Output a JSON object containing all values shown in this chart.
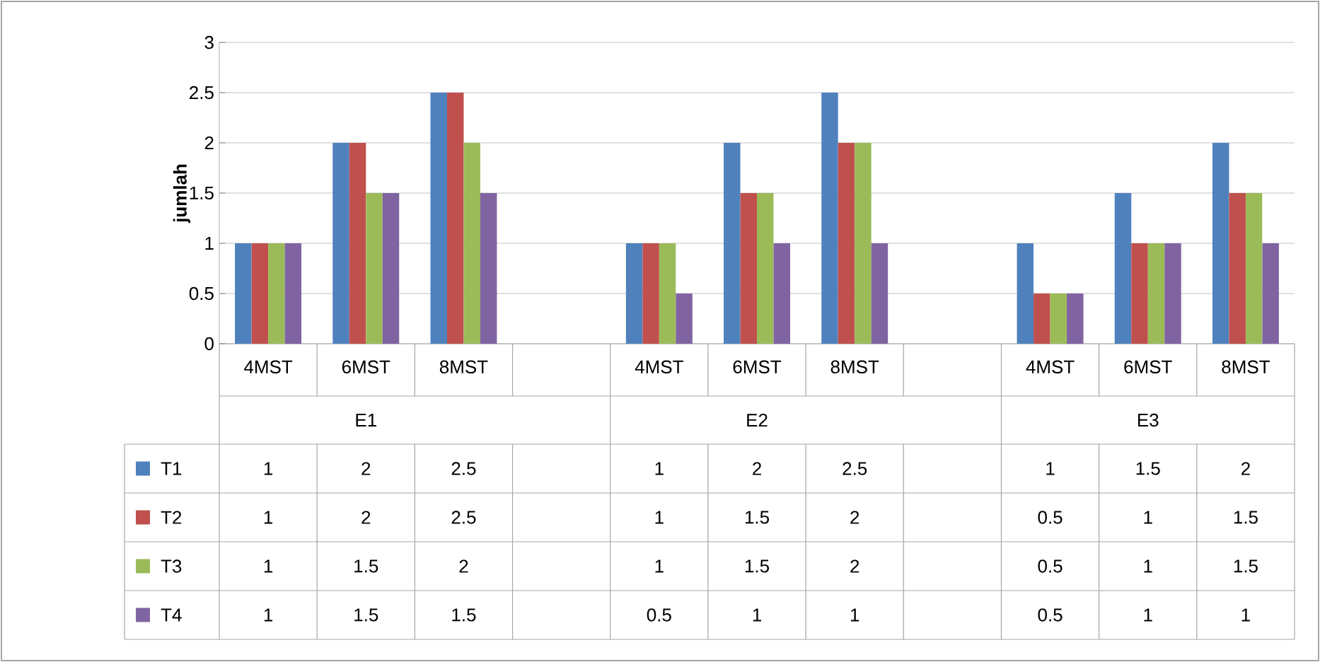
{
  "chart_data": {
    "type": "bar",
    "ylabel": "jumlah",
    "categories": [
      "4MST",
      "6MST",
      "8MST",
      null,
      "4MST",
      "6MST",
      "8MST",
      null,
      "4MST",
      "6MST",
      "8MST"
    ],
    "annotations": [
      "E1",
      "E2",
      "E3"
    ],
    "series": [
      {
        "name": "T1",
        "color": "#4f81bd",
        "values": [
          1,
          2,
          2.5,
          null,
          1,
          2,
          2.5,
          null,
          1,
          1.5,
          2
        ]
      },
      {
        "name": "T2",
        "color": "#c0504d",
        "values": [
          1,
          2,
          2.5,
          null,
          1,
          1.5,
          2,
          null,
          0.5,
          1,
          1.5
        ]
      },
      {
        "name": "T3",
        "color": "#9bbb59",
        "values": [
          1,
          1.5,
          2,
          null,
          1,
          1.5,
          2,
          null,
          0.5,
          1,
          1.5
        ]
      },
      {
        "name": "T4",
        "color": "#8064a2",
        "values": [
          1,
          1.5,
          1.5,
          null,
          0.5,
          1,
          1,
          null,
          0.5,
          1,
          1
        ]
      }
    ],
    "ylim": [
      0,
      3
    ],
    "yticks": [
      0,
      0.5,
      1,
      1.5,
      2,
      2.5,
      3
    ],
    "grid": "y",
    "legend": "bottom",
    "data_labels": true
  }
}
